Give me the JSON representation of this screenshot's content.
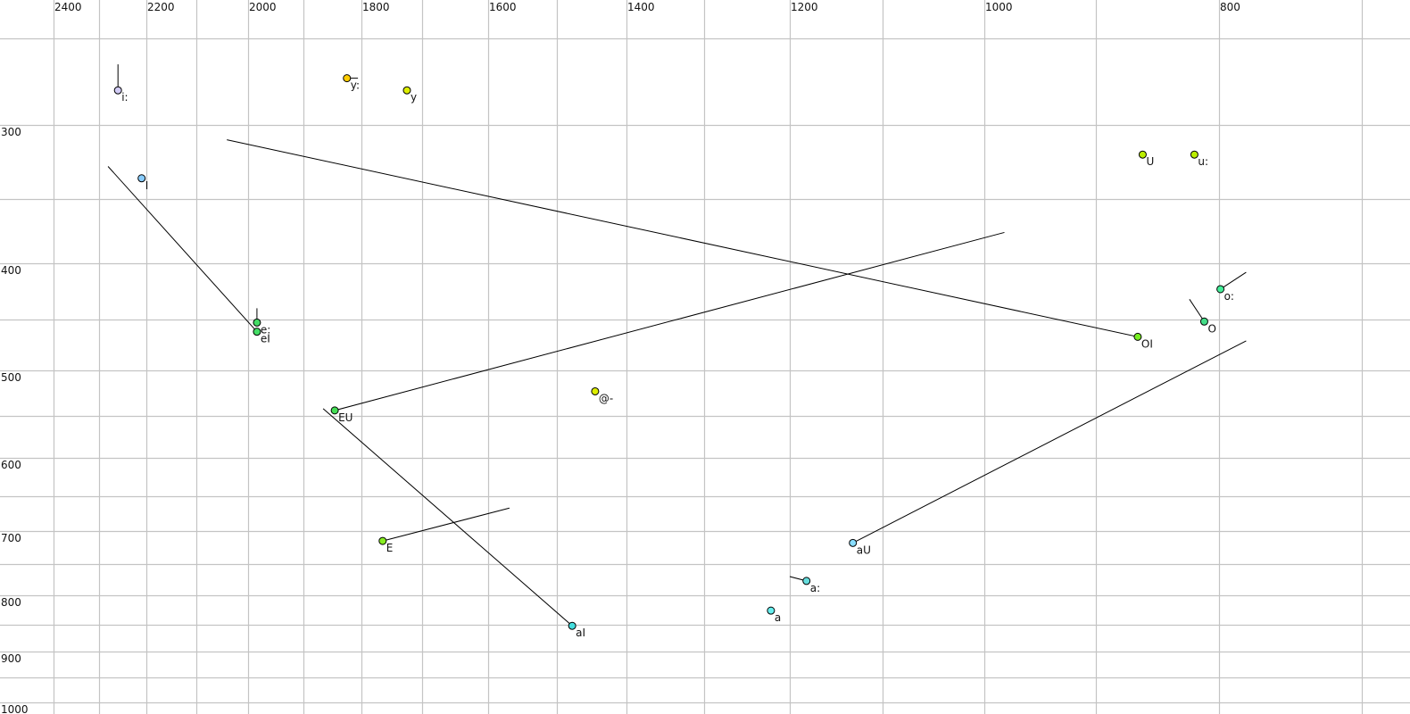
{
  "chart_data": {
    "type": "scatter",
    "title": "",
    "xlabel": "",
    "ylabel": "",
    "x_axis": {
      "quantity": "F2",
      "reversed": true,
      "scale": "auckland/bark-like nonlinear",
      "range": [
        2450,
        650
      ],
      "tick_labels": [
        2400,
        2200,
        2000,
        1800,
        1600,
        1400,
        1200,
        1000,
        800
      ],
      "gridlines": [
        2400,
        2300,
        2200,
        2100,
        2000,
        1900,
        1800,
        1700,
        1600,
        1500,
        1400,
        1300,
        1200,
        1100,
        1000,
        900,
        800,
        700
      ]
    },
    "y_axis": {
      "quantity": "F1",
      "reversed": false,
      "scale": "nonlinear",
      "range": [
        220,
        1005
      ],
      "tick_labels": [
        300,
        400,
        500,
        600,
        700,
        800,
        900,
        1000
      ],
      "gridlines": [
        250,
        300,
        350,
        400,
        450,
        500,
        550,
        600,
        650,
        700,
        750,
        800,
        850,
        900,
        950,
        1000
      ]
    },
    "grid": true,
    "legend": "none",
    "points": [
      {
        "label": "i:",
        "f2": 2260,
        "f1": 280,
        "color": "#d2ccf6",
        "end": [
          2260,
          265
        ]
      },
      {
        "label": "y:",
        "f2": 1825,
        "f1": 273,
        "color": "#ffcc00",
        "end": [
          1806,
          273
        ]
      },
      {
        "label": "y",
        "f2": 1725,
        "f1": 280,
        "color": "#ddee00"
      },
      {
        "label": "I",
        "f2": 2210,
        "f1": 336,
        "color": "#88ccff"
      },
      {
        "label": "e:",
        "f2": 1984,
        "f1": 453,
        "color": "#44dd66",
        "end": [
          1984,
          440
        ]
      },
      {
        "label": "eI",
        "f2": 1984,
        "f1": 462,
        "color": "#44dd66",
        "end": [
          2281,
          328
        ]
      },
      {
        "label": "EU",
        "f2": 1846,
        "f1": 544,
        "color": "#44dd55",
        "end": [
          982,
          376
        ]
      },
      {
        "label": "@-",
        "f2": 1445,
        "f1": 523,
        "color": "#ddee00"
      },
      {
        "label": "E",
        "f2": 1765,
        "f1": 715,
        "color": "#88ee22",
        "end": [
          1569,
          667
        ]
      },
      {
        "label": "aI",
        "f2": 1478,
        "f1": 852,
        "color": "#44dddd",
        "end": [
          1866,
          542
        ]
      },
      {
        "label": "a",
        "f2": 1222,
        "f1": 826,
        "color": "#66eeee"
      },
      {
        "label": "a:",
        "f2": 1182,
        "f1": 777,
        "color": "#66dddd",
        "end": [
          1200,
          770
        ]
      },
      {
        "label": "aU",
        "f2": 1132,
        "f1": 718,
        "color": "#88ddff",
        "end": [
          781,
          471
        ]
      },
      {
        "label": "OI",
        "f2": 866,
        "f1": 467,
        "color": "#77ee22",
        "end": [
          2041,
          310
        ]
      },
      {
        "label": "U",
        "f2": 862,
        "f1": 320,
        "color": "#bbee00"
      },
      {
        "label": "u:",
        "f2": 820,
        "f1": 320,
        "color": "#bbee00"
      },
      {
        "label": "o:",
        "f2": 799,
        "f1": 423,
        "color": "#44ee99",
        "end": [
          781,
          408
        ]
      },
      {
        "label": "O",
        "f2": 812,
        "f1": 452,
        "color": "#44dd88",
        "end": [
          824,
          432
        ]
      }
    ]
  }
}
